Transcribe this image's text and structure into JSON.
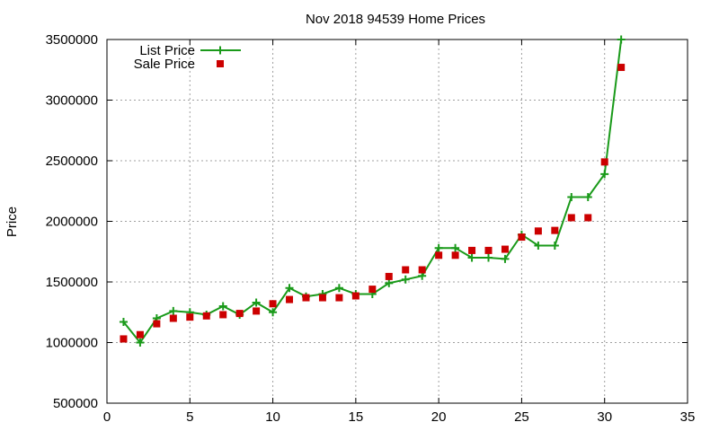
{
  "chart_data": {
    "type": "line",
    "title": "Nov 2018 94539 Home Prices",
    "xlabel": "",
    "ylabel": "Price",
    "xlim": [
      0,
      35
    ],
    "ylim": [
      500000,
      3500000
    ],
    "x_ticks": [
      "0",
      "5",
      "10",
      "15",
      "20",
      "25",
      "30",
      "35"
    ],
    "y_ticks": [
      "500000",
      "1000000",
      "1500000",
      "2000000",
      "2500000",
      "3000000",
      "3500000"
    ],
    "grid": true,
    "legend_position": "top-left",
    "series": [
      {
        "name": "List Price",
        "style": "line+cross",
        "color": "#1a9a1a",
        "x": [
          1,
          2,
          3,
          4,
          5,
          6,
          7,
          8,
          9,
          10,
          11,
          12,
          13,
          14,
          15,
          16,
          17,
          18,
          19,
          20,
          21,
          22,
          23,
          24,
          25,
          26,
          27,
          28,
          29,
          30,
          31
        ],
        "y": [
          1170000,
          1000000,
          1200000,
          1260000,
          1250000,
          1230000,
          1300000,
          1230000,
          1330000,
          1250000,
          1450000,
          1380000,
          1400000,
          1450000,
          1400000,
          1400000,
          1490000,
          1520000,
          1550000,
          1780000,
          1780000,
          1700000,
          1700000,
          1690000,
          1890000,
          1800000,
          1800000,
          2200000,
          2200000,
          2390000,
          3500000
        ]
      },
      {
        "name": "Sale Price",
        "style": "square",
        "color": "#cc0000",
        "x": [
          1,
          2,
          3,
          4,
          5,
          6,
          7,
          8,
          9,
          10,
          11,
          12,
          13,
          14,
          15,
          16,
          17,
          18,
          19,
          20,
          21,
          22,
          23,
          24,
          25,
          26,
          27,
          28,
          29,
          30,
          31
        ],
        "y": [
          1030000,
          1065000,
          1155000,
          1200000,
          1210000,
          1220000,
          1230000,
          1240000,
          1260000,
          1320000,
          1355000,
          1370000,
          1370000,
          1370000,
          1385000,
          1440000,
          1545000,
          1600000,
          1600000,
          1720000,
          1720000,
          1760000,
          1760000,
          1770000,
          1870000,
          1920000,
          1925000,
          2030000,
          2030000,
          2490000,
          3270000
        ]
      }
    ]
  }
}
